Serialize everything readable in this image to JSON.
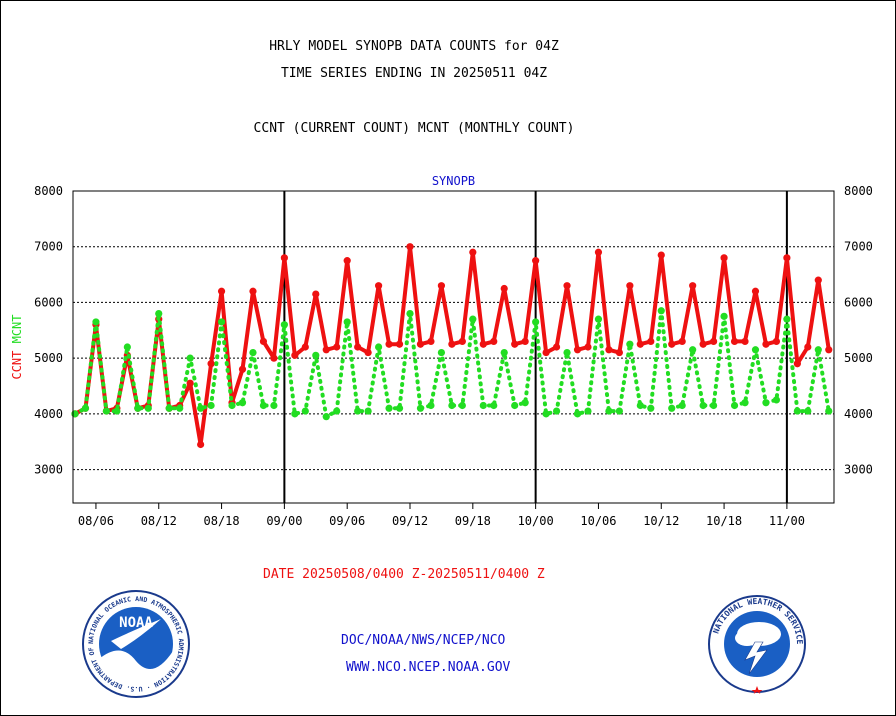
{
  "header": {
    "title_line1": "HRLY MODEL SYNOPB DATA COUNTS for 04Z",
    "title_line2": "TIME SERIES ENDING IN 20250511 04Z",
    "subtitle": "CCNT (CURRENT COUNT) MCNT (MONTHLY COUNT)"
  },
  "footer": {
    "date_range": "DATE 20250508/0400 Z-20250511/0400 Z",
    "org_line": "DOC/NOAA/NWS/NCEP/NCO",
    "url_line": "WWW.NCO.NCEP.NOAA.GOV"
  },
  "logos": {
    "noaa_text": "NOAA",
    "noaa_ring_text": "NATIONAL OCEANIC AND ATMOSPHERIC ADMINISTRATION · U.S. DEPARTMENT OF COMMERCE",
    "nws_ring_text": "NATIONAL WEATHER SERVICE"
  },
  "colors": {
    "ccnt": "#ee1111",
    "mcnt": "#22dd22",
    "panel_title": "#1111cc",
    "footer_blue": "#1111cc",
    "footer_red": "#ee1111"
  },
  "chart_data": {
    "type": "line",
    "panel_title": "SYNOPB",
    "ylabel_ccnt": "CCNT",
    "ylabel_mcnt": "MCNT",
    "ylim": [
      2400,
      8000
    ],
    "yticks": [
      3000,
      4000,
      5000,
      6000,
      7000,
      8000
    ],
    "grid": true,
    "x_tick_labels": [
      "08/06",
      "08/12",
      "08/18",
      "09/00",
      "09/06",
      "09/12",
      "09/18",
      "10/00",
      "10/06",
      "10/12",
      "10/18",
      "11/00"
    ],
    "x_tick_positions": [
      2,
      8,
      14,
      20,
      26,
      32,
      38,
      44,
      50,
      56,
      62,
      68
    ],
    "day_boundaries": [
      20,
      44,
      68
    ],
    "xlim": [
      0,
      72.5
    ],
    "series": [
      {
        "name": "CCNT",
        "style": "solid",
        "values": [
          4000,
          4100,
          5600,
          4050,
          4100,
          5050,
          4100,
          4150,
          5700,
          4100,
          4150,
          4550,
          3450,
          4900,
          6200,
          4200,
          4800,
          6200,
          5300,
          5000,
          6800,
          5050,
          5200,
          6150,
          5150,
          5200,
          6750,
          5200,
          5100,
          6300,
          5250,
          5250,
          7000,
          5250,
          5300,
          6300,
          5250,
          5300,
          6900,
          5250,
          5300,
          6250,
          5250,
          5300,
          6750,
          5100,
          5200,
          6300,
          5150,
          5200,
          6900,
          5150,
          5100,
          6300,
          5250,
          5300,
          6850,
          5250,
          5300,
          6300,
          5250,
          5300,
          6800,
          5300,
          5300,
          6200,
          5250,
          5300,
          6800,
          4900,
          5200,
          6400,
          5150
        ]
      },
      {
        "name": "MCNT",
        "style": "dotted",
        "values": [
          4000,
          4100,
          5650,
          4050,
          4050,
          5200,
          4100,
          4100,
          5800,
          4100,
          4100,
          5000,
          4100,
          4150,
          5650,
          4150,
          4200,
          5100,
          4150,
          4150,
          5600,
          4000,
          4050,
          5050,
          3950,
          4050,
          5650,
          4050,
          4050,
          5200,
          4100,
          4100,
          5800,
          4100,
          4150,
          5100,
          4150,
          4150,
          5700,
          4150,
          4150,
          5100,
          4150,
          4200,
          5650,
          4000,
          4050,
          5100,
          4000,
          4050,
          5700,
          4050,
          4050,
          5250,
          4150,
          4100,
          5850,
          4100,
          4150,
          5150,
          4150,
          4150,
          5750,
          4150,
          4200,
          5150,
          4200,
          4250,
          5700,
          4050,
          4050,
          5150,
          4050
        ]
      }
    ]
  }
}
